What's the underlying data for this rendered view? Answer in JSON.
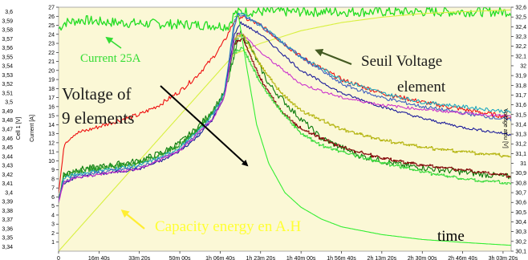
{
  "chart_data": {
    "type": "line",
    "background": "#fbf8d6",
    "grid": false,
    "x_axis": {
      "min": 0,
      "max": 11200,
      "ticks": [
        {
          "v": 0,
          "label": "0"
        },
        {
          "v": 1000,
          "label": "16m 40s"
        },
        {
          "v": 2000,
          "label": "33m 20s"
        },
        {
          "v": 3000,
          "label": "50m 00s"
        },
        {
          "v": 4000,
          "label": "1h 06m 40s"
        },
        {
          "v": 5000,
          "label": "1h 23m 20s"
        },
        {
          "v": 6000,
          "label": "1h 40m 00s"
        },
        {
          "v": 7000,
          "label": "1h 56m 40s"
        },
        {
          "v": 8000,
          "label": "2h 13m 20s"
        },
        {
          "v": 9000,
          "label": "2h 30m 00s"
        },
        {
          "v": 10000,
          "label": "2h 46m 40s"
        },
        {
          "v": 11000,
          "label": "3h 03m 20s"
        }
      ]
    },
    "y_axes": {
      "cell": {
        "label": "Cell 1 [V]",
        "min": 3.335,
        "max": 3.605,
        "ticks": [
          "3,34",
          "3,35",
          "3,36",
          "3,37",
          "3,38",
          "3,39",
          "3,4",
          "3,41",
          "3,42",
          "3,43",
          "3,44",
          "3,45",
          "3,46",
          "3,47",
          "3,48",
          "3,49",
          "3,5",
          "3,51",
          "3,52",
          "3,53",
          "3,54",
          "3,55",
          "3,56",
          "3,57",
          "3,58",
          "3,59",
          "3,6"
        ]
      },
      "current": {
        "label": "Current [A]",
        "min": 0,
        "max": 27,
        "ticks": [
          "1",
          "2",
          "3",
          "4",
          "5",
          "6",
          "7",
          "8",
          "9",
          "10",
          "11",
          "12",
          "13",
          "14",
          "15",
          "16",
          "17",
          "18",
          "19",
          "20",
          "21",
          "22",
          "23",
          "24",
          "25",
          "26",
          "27"
        ]
      },
      "voltage": {
        "label": "Voltage atou [V]",
        "min": 30.1,
        "max": 32.6,
        "ticks": [
          "30,1",
          "30,2",
          "30,3",
          "30,4",
          "30,5",
          "30,6",
          "30,7",
          "30,8",
          "30,9",
          "31",
          "31,1",
          "31,2",
          "31,3",
          "31,4",
          "31,5",
          "31,6",
          "31,7",
          "31,8",
          "31,9",
          "32",
          "32,1",
          "32,2",
          "32,3",
          "32,4",
          "32,5",
          "32,6"
        ]
      }
    },
    "series": [
      {
        "color": "#22dd22",
        "axis": "current",
        "role": "current",
        "noise": 0.55,
        "points": [
          [
            0,
            24.6
          ],
          [
            150,
            25.3
          ],
          [
            600,
            25.6
          ],
          [
            1000,
            25.4
          ],
          [
            2000,
            25.2
          ],
          [
            3000,
            25.1
          ],
          [
            3800,
            25.0
          ],
          [
            4200,
            24.9
          ],
          [
            4350,
            26.3
          ],
          [
            4500,
            26.5
          ],
          [
            11200,
            26.5
          ]
        ]
      },
      {
        "color": "#d8f040",
        "axis": "current",
        "role": "capacity",
        "noise": 0,
        "points": [
          [
            0,
            0
          ],
          [
            4350,
            21.8
          ],
          [
            5000,
            23.0
          ],
          [
            6000,
            24.4
          ],
          [
            7000,
            25.3
          ],
          [
            8000,
            25.9
          ],
          [
            9000,
            26.3
          ],
          [
            10000,
            26.5
          ],
          [
            11200,
            26.7
          ]
        ]
      },
      {
        "color": "#ee1111",
        "axis": "cell",
        "noise": 0.0025,
        "step": false,
        "points": [
          [
            0,
            3.4
          ],
          [
            150,
            3.455
          ],
          [
            400,
            3.465
          ],
          [
            800,
            3.47
          ],
          [
            1500,
            3.48
          ],
          [
            2000,
            3.486
          ],
          [
            2500,
            3.497
          ],
          [
            3000,
            3.512
          ],
          [
            3400,
            3.528
          ],
          [
            3800,
            3.548
          ],
          [
            4100,
            3.567
          ],
          [
            4350,
            3.59
          ],
          [
            4500,
            3.595
          ],
          [
            5000,
            3.585
          ],
          [
            6000,
            3.55
          ],
          [
            7000,
            3.525
          ],
          [
            8000,
            3.51
          ],
          [
            9000,
            3.5
          ],
          [
            10000,
            3.492
          ],
          [
            11200,
            3.483
          ]
        ]
      },
      {
        "color": "#0a7a0a",
        "axis": "cell",
        "noise": 0.0035,
        "step": false,
        "points": [
          [
            0,
            3.39
          ],
          [
            120,
            3.42
          ],
          [
            400,
            3.425
          ],
          [
            1000,
            3.428
          ],
          [
            2000,
            3.435
          ],
          [
            2600,
            3.445
          ],
          [
            3000,
            3.455
          ],
          [
            3400,
            3.47
          ],
          [
            3800,
            3.49
          ],
          [
            4100,
            3.51
          ],
          [
            4350,
            3.56
          ],
          [
            4450,
            3.58
          ],
          [
            4700,
            3.565
          ],
          [
            5200,
            3.52
          ],
          [
            5800,
            3.49
          ],
          [
            6500,
            3.46
          ],
          [
            7500,
            3.44
          ],
          [
            8500,
            3.43
          ],
          [
            9500,
            3.425
          ],
          [
            10500,
            3.42
          ],
          [
            11200,
            3.417
          ]
        ]
      },
      {
        "color": "#2a9a2a",
        "axis": "cell",
        "noise": 0.003,
        "step": false,
        "points": [
          [
            0,
            3.39
          ],
          [
            120,
            3.418
          ],
          [
            400,
            3.423
          ],
          [
            1000,
            3.427
          ],
          [
            2000,
            3.433
          ],
          [
            2600,
            3.443
          ],
          [
            3000,
            3.453
          ],
          [
            3400,
            3.468
          ],
          [
            3800,
            3.488
          ],
          [
            4100,
            3.508
          ],
          [
            4350,
            3.552
          ],
          [
            4450,
            3.572
          ]
        ]
      },
      {
        "color": "#20a8c0",
        "axis": "cell",
        "noise": 0.002,
        "step": false,
        "points": [
          [
            0,
            3.39
          ],
          [
            120,
            3.415
          ],
          [
            400,
            3.42
          ],
          [
            1000,
            3.424
          ],
          [
            2000,
            3.43
          ],
          [
            2600,
            3.44
          ],
          [
            3000,
            3.45
          ],
          [
            3400,
            3.465
          ],
          [
            3800,
            3.485
          ],
          [
            4100,
            3.51
          ],
          [
            4350,
            3.59
          ],
          [
            4450,
            3.6
          ],
          [
            5000,
            3.585
          ],
          [
            6000,
            3.55
          ],
          [
            7000,
            3.525
          ],
          [
            8000,
            3.51
          ],
          [
            9000,
            3.5
          ],
          [
            10000,
            3.495
          ],
          [
            11200,
            3.489
          ]
        ]
      },
      {
        "color": "#4060c0",
        "axis": "cell",
        "noise": 0.002,
        "step": false,
        "points": [
          [
            0,
            3.39
          ],
          [
            120,
            3.412
          ],
          [
            400,
            3.418
          ],
          [
            1000,
            3.422
          ],
          [
            2000,
            3.428
          ],
          [
            2600,
            3.438
          ],
          [
            3000,
            3.448
          ],
          [
            3400,
            3.462
          ],
          [
            3800,
            3.482
          ],
          [
            4100,
            3.506
          ],
          [
            4350,
            3.585
          ],
          [
            4450,
            3.598
          ],
          [
            5000,
            3.585
          ],
          [
            6000,
            3.55
          ],
          [
            7000,
            3.52
          ],
          [
            8000,
            3.505
          ],
          [
            9000,
            3.495
          ],
          [
            10000,
            3.488
          ],
          [
            11200,
            3.48
          ]
        ]
      },
      {
        "color": "#1a1a9a",
        "axis": "cell",
        "noise": 0.0015,
        "step": false,
        "points": [
          [
            0,
            3.39
          ],
          [
            120,
            3.41
          ],
          [
            400,
            3.416
          ],
          [
            1000,
            3.42
          ],
          [
            2000,
            3.426
          ],
          [
            2600,
            3.436
          ],
          [
            3000,
            3.446
          ],
          [
            3400,
            3.46
          ],
          [
            3800,
            3.48
          ],
          [
            4100,
            3.505
          ],
          [
            4350,
            3.575
          ],
          [
            4500,
            3.588
          ],
          [
            5000,
            3.575
          ],
          [
            6000,
            3.535
          ],
          [
            7000,
            3.51
          ],
          [
            8000,
            3.495
          ],
          [
            9000,
            3.482
          ],
          [
            10000,
            3.472
          ],
          [
            11200,
            3.464
          ]
        ]
      },
      {
        "color": "#cc33cc",
        "axis": "cell",
        "noise": 0.0015,
        "step": false,
        "points": [
          [
            0,
            3.39
          ],
          [
            120,
            3.41
          ],
          [
            400,
            3.416
          ],
          [
            1000,
            3.42
          ],
          [
            2000,
            3.426
          ],
          [
            3000,
            3.446
          ],
          [
            3800,
            3.48
          ],
          [
            4100,
            3.505
          ],
          [
            4350,
            3.57
          ],
          [
            4500,
            3.578
          ],
          [
            5000,
            3.555
          ],
          [
            6000,
            3.52
          ],
          [
            7000,
            3.505
          ],
          [
            8000,
            3.497
          ],
          [
            9000,
            3.492
          ],
          [
            10000,
            3.488
          ],
          [
            11200,
            3.484
          ]
        ]
      },
      {
        "color": "#b8b81a",
        "axis": "cell",
        "noise": 0.001,
        "step": true,
        "points": [
          [
            4350,
            3.57
          ],
          [
            4550,
            3.575
          ],
          [
            5000,
            3.54
          ],
          [
            5500,
            3.51
          ],
          [
            6000,
            3.49
          ],
          [
            6500,
            3.48
          ],
          [
            7000,
            3.47
          ],
          [
            8000,
            3.458
          ],
          [
            9000,
            3.45
          ],
          [
            10000,
            3.445
          ],
          [
            11200,
            3.44
          ]
        ]
      },
      {
        "color": "#881010",
        "axis": "cell",
        "noise": 0.001,
        "step": true,
        "points": [
          [
            4350,
            3.565
          ],
          [
            4550,
            3.57
          ],
          [
            5000,
            3.525
          ],
          [
            5500,
            3.49
          ],
          [
            6000,
            3.47
          ],
          [
            7000,
            3.45
          ],
          [
            8000,
            3.438
          ],
          [
            9000,
            3.43
          ],
          [
            10000,
            3.425
          ],
          [
            11200,
            3.418
          ]
        ]
      },
      {
        "color": "#44dd44",
        "axis": "cell",
        "noise": 0.001,
        "step": true,
        "points": [
          [
            4350,
            3.555
          ],
          [
            4550,
            3.56
          ],
          [
            5000,
            3.52
          ],
          [
            5500,
            3.49
          ],
          [
            6000,
            3.465
          ],
          [
            6500,
            3.452
          ],
          [
            7000,
            3.445
          ],
          [
            8000,
            3.433
          ],
          [
            9000,
            3.423
          ],
          [
            10000,
            3.415
          ],
          [
            11200,
            3.41
          ]
        ]
      },
      {
        "color": "#33ee33",
        "axis": "voltage",
        "noise": 0,
        "step": false,
        "points": [
          [
            4350,
            32.5
          ],
          [
            4450,
            32.52
          ],
          [
            4650,
            32.0
          ],
          [
            4900,
            31.4
          ],
          [
            5200,
            31.0
          ],
          [
            5600,
            30.7
          ],
          [
            6000,
            30.55
          ],
          [
            6500,
            30.43
          ],
          [
            7000,
            30.35
          ],
          [
            8000,
            30.27
          ],
          [
            9000,
            30.22
          ],
          [
            10000,
            30.19
          ],
          [
            11200,
            30.16
          ]
        ]
      }
    ],
    "annotations": [
      {
        "text": "Current 25A",
        "color": "#33dd33",
        "size": 15
      },
      {
        "text": "Seuil Voltage",
        "color": "#1a1a1a",
        "size": 19
      },
      {
        "text": "element",
        "color": "#1a1a1a",
        "size": 19
      },
      {
        "text": "Voltage  of",
        "color": "#1a1a1a",
        "size": 21
      },
      {
        "text": "9 elements",
        "color": "#1a1a1a",
        "size": 21
      },
      {
        "text": "Capacity energy en A.H",
        "color": "#ffff33",
        "size": 19
      },
      {
        "text": "time",
        "color": "#000000",
        "size": 19
      }
    ]
  }
}
